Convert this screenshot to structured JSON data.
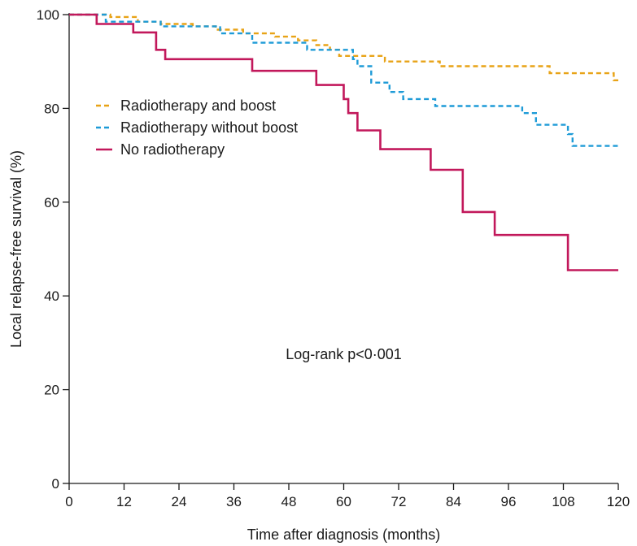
{
  "chart_data": {
    "type": "line",
    "step": true,
    "title": "",
    "xlabel": "Time after diagnosis (months)",
    "ylabel": "Local relapse-free survival (%)",
    "xlim": [
      0,
      120
    ],
    "ylim": [
      0,
      100
    ],
    "xticks": [
      0,
      12,
      24,
      36,
      48,
      60,
      72,
      84,
      96,
      108,
      120
    ],
    "yticks": [
      0,
      20,
      40,
      60,
      80,
      100
    ],
    "grid": false,
    "legend_position": "top-left",
    "annotation": "Log-rank p<0·001",
    "series": [
      {
        "name": "Radiotherapy and boost",
        "color": "#E8A317",
        "dash": "dashed",
        "points": [
          [
            0,
            100
          ],
          [
            9,
            100
          ],
          [
            9,
            99.5
          ],
          [
            15,
            99.5
          ],
          [
            15,
            98.5
          ],
          [
            20,
            98.5
          ],
          [
            20,
            98
          ],
          [
            27,
            98
          ],
          [
            27,
            97.5
          ],
          [
            32,
            97.5
          ],
          [
            32,
            96.8
          ],
          [
            38,
            96.8
          ],
          [
            38,
            96
          ],
          [
            45,
            96
          ],
          [
            45,
            95.3
          ],
          [
            50,
            95.3
          ],
          [
            50,
            94.5
          ],
          [
            54,
            94.5
          ],
          [
            54,
            93.5
          ],
          [
            57,
            93.5
          ],
          [
            57,
            92.5
          ],
          [
            59,
            92.5
          ],
          [
            59,
            91.2
          ],
          [
            69,
            91.2
          ],
          [
            69,
            90
          ],
          [
            81,
            90
          ],
          [
            81,
            89
          ],
          [
            105,
            89
          ],
          [
            105,
            87.5
          ],
          [
            119,
            87.5
          ],
          [
            119,
            86
          ],
          [
            120,
            86
          ]
        ]
      },
      {
        "name": "Radiotherapy without boost",
        "color": "#1E9BD7",
        "dash": "dashed",
        "points": [
          [
            0,
            100
          ],
          [
            8,
            100
          ],
          [
            8,
            98.5
          ],
          [
            20,
            98.5
          ],
          [
            20,
            97.5
          ],
          [
            33,
            97.5
          ],
          [
            33,
            96
          ],
          [
            40,
            96
          ],
          [
            40,
            94
          ],
          [
            52,
            94
          ],
          [
            52,
            92.5
          ],
          [
            62,
            92.5
          ],
          [
            62,
            90.5
          ],
          [
            63,
            90.5
          ],
          [
            63,
            89
          ],
          [
            66,
            89
          ],
          [
            66,
            85.5
          ],
          [
            70,
            85.5
          ],
          [
            70,
            83.5
          ],
          [
            73,
            83.5
          ],
          [
            73,
            82
          ],
          [
            80,
            82
          ],
          [
            80,
            80.5
          ],
          [
            99,
            80.5
          ],
          [
            99,
            79
          ],
          [
            102,
            79
          ],
          [
            102,
            76.5
          ],
          [
            109,
            76.5
          ],
          [
            109,
            74.5
          ],
          [
            110,
            74.5
          ],
          [
            110,
            72
          ],
          [
            120,
            72
          ]
        ]
      },
      {
        "name": "No radiotherapy",
        "color": "#C2185B",
        "dash": "solid",
        "points": [
          [
            0,
            100
          ],
          [
            6,
            100
          ],
          [
            6,
            98
          ],
          [
            14,
            98
          ],
          [
            14,
            96.2
          ],
          [
            19,
            96.2
          ],
          [
            19,
            92.5
          ],
          [
            21,
            92.5
          ],
          [
            21,
            90.5
          ],
          [
            40,
            90.5
          ],
          [
            40,
            88
          ],
          [
            54,
            88
          ],
          [
            54,
            85
          ],
          [
            60,
            85
          ],
          [
            60,
            82
          ],
          [
            61,
            82
          ],
          [
            61,
            79
          ],
          [
            63,
            79
          ],
          [
            63,
            75.3
          ],
          [
            68,
            75.3
          ],
          [
            68,
            71.3
          ],
          [
            79,
            71.3
          ],
          [
            79,
            66.9
          ],
          [
            86,
            66.9
          ],
          [
            86,
            57.9
          ],
          [
            93,
            57.9
          ],
          [
            93,
            53
          ],
          [
            109,
            53
          ],
          [
            109,
            45.5
          ],
          [
            120,
            45.5
          ]
        ]
      }
    ]
  }
}
